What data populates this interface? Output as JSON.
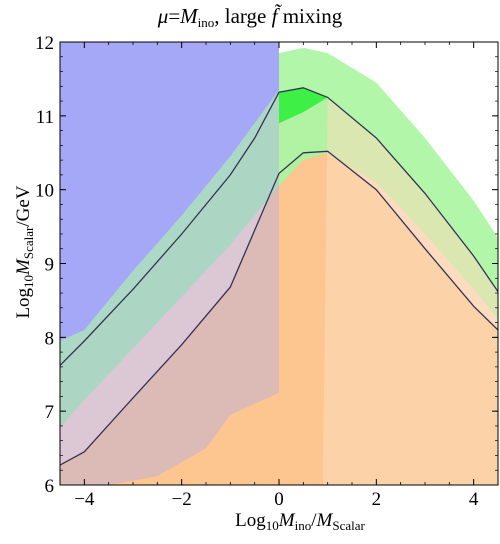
{
  "chart_data": {
    "type": "area",
    "title_parts": {
      "mu": "μ",
      "eq": "=",
      "m": "M",
      "m_sub": "ino",
      "rest": ", large ",
      "f": "f̃",
      "mixing": " mixing"
    },
    "xlabel_parts": {
      "log": "Log",
      "sub10": "10",
      "m1": "M",
      "sub1": "ino",
      "slash": "/",
      "m2": "M",
      "sub2": "Scalar"
    },
    "ylabel_parts": {
      "log": "Log",
      "sub10": "10",
      "m": "M",
      "sub": "Scalar",
      "unit": "/GeV"
    },
    "xlim": [
      -4.5,
      4.5
    ],
    "ylim": [
      6,
      12
    ],
    "x_ticks": [
      -4,
      -2,
      0,
      2,
      4
    ],
    "y_ticks": [
      6,
      7,
      8,
      9,
      10,
      11,
      12
    ],
    "x_tick_labels": [
      "−4",
      "−2",
      "0",
      "2",
      "4"
    ],
    "y_tick_labels": [
      "6",
      "7",
      "8",
      "9",
      "10",
      "11",
      "12"
    ],
    "colors": {
      "orange": "#fdc58f",
      "orange_light": "#fcdcbe",
      "green": "#a8f5a0",
      "green_dark": "#3ef046",
      "blue": "#a5a8f7",
      "blue_light": "#b2cbe9",
      "curve": "#333355"
    },
    "series": [
      {
        "role": "green-band",
        "upper": [
          [
            -4.5,
            8.05
          ],
          [
            -4.0,
            8.4
          ],
          [
            -3.0,
            9.1
          ],
          [
            -2.0,
            9.82
          ],
          [
            -1.0,
            10.62
          ],
          [
            0.0,
            11.85
          ],
          [
            0.5,
            11.92
          ],
          [
            1.0,
            11.85
          ],
          [
            2.0,
            11.45
          ],
          [
            3.0,
            10.7
          ],
          [
            4.0,
            9.85
          ],
          [
            4.5,
            9.35
          ]
        ],
        "lower": [
          [
            -4.5,
            6.78
          ],
          [
            -4.0,
            7.15
          ],
          [
            -3.0,
            7.85
          ],
          [
            -2.0,
            8.55
          ],
          [
            -1.0,
            9.25
          ],
          [
            0.0,
            10.05
          ],
          [
            0.5,
            10.4
          ],
          [
            1.0,
            10.5
          ],
          [
            2.0,
            10.1
          ],
          [
            3.0,
            9.4
          ],
          [
            4.0,
            8.65
          ],
          [
            4.5,
            8.25
          ]
        ]
      },
      {
        "role": "orange-region",
        "upper": [
          [
            -4.5,
            7.62
          ],
          [
            -4.0,
            7.95
          ],
          [
            -3.0,
            8.65
          ],
          [
            -2.0,
            9.4
          ],
          [
            -1.0,
            10.2
          ],
          [
            -0.5,
            10.7
          ],
          [
            0.0,
            11.32
          ],
          [
            0.5,
            11.38
          ],
          [
            1.0,
            11.25
          ],
          [
            2.0,
            10.7
          ],
          [
            3.0,
            9.95
          ],
          [
            4.0,
            9.1
          ],
          [
            4.5,
            8.62
          ]
        ]
      },
      {
        "role": "lower-curve",
        "points": [
          [
            -4.5,
            6.27
          ],
          [
            -4.0,
            6.45
          ],
          [
            -3.0,
            7.18
          ],
          [
            -2.0,
            7.9
          ],
          [
            -1.0,
            8.68
          ],
          [
            0.0,
            10.22
          ],
          [
            0.5,
            10.5
          ],
          [
            1.0,
            10.52
          ],
          [
            2.0,
            10.0
          ],
          [
            3.0,
            9.2
          ],
          [
            4.0,
            8.42
          ],
          [
            4.5,
            8.1
          ]
        ]
      },
      {
        "role": "lower-band-floor",
        "points": [
          [
            -4.5,
            6.0
          ],
          [
            -3.5,
            6.0
          ],
          [
            -2.5,
            6.12
          ],
          [
            -1.5,
            6.5
          ],
          [
            -1.0,
            6.95
          ],
          [
            -0.5,
            7.1
          ],
          [
            0.0,
            7.25
          ]
        ]
      },
      {
        "role": "blue-region",
        "xmax": 0.0,
        "lower": [
          [
            -4.5,
            7.95
          ],
          [
            -4.0,
            8.1
          ],
          [
            -3.0,
            8.9
          ],
          [
            -2.0,
            9.65
          ],
          [
            -1.0,
            10.45
          ],
          [
            0.0,
            11.35
          ]
        ]
      }
    ]
  }
}
